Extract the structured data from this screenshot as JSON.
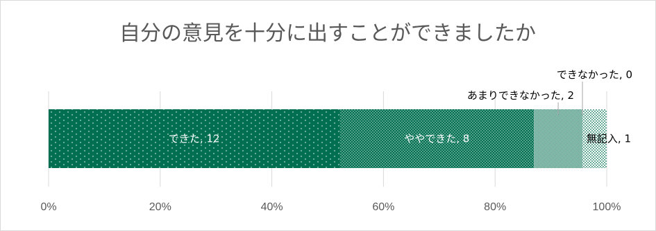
{
  "chart_data": {
    "type": "bar",
    "orientation": "horizontal",
    "stacked": "percent",
    "title": "自分の意見を十分に出すことができましたか",
    "xlabel": "",
    "ylabel": "",
    "xlim": [
      0,
      100
    ],
    "x_ticks": [
      "0%",
      "20%",
      "40%",
      "60%",
      "80%",
      "100%"
    ],
    "grid": true,
    "legend": "none",
    "series": [
      {
        "category": "できた",
        "value": 12,
        "label": "できた, 12",
        "color": "#006e51",
        "pattern": "sparse-dots",
        "label_position": "inside"
      },
      {
        "category": "ややできた",
        "value": 8,
        "label": "ややできた, 8",
        "color": "#006e51",
        "pattern": "dense-dots",
        "label_position": "inside"
      },
      {
        "category": "あまりできなかった",
        "value": 2,
        "label": "あまりできなかった, 2",
        "color": "#006e51",
        "pattern": "checker",
        "label_position": "callout"
      },
      {
        "category": "できなかった",
        "value": 0,
        "label": "できなかった, 0",
        "color": "#006e51",
        "pattern": "checker",
        "label_position": "callout"
      },
      {
        "category": "無記入",
        "value": 1,
        "label": "無記入, 1",
        "color": "#006e51",
        "pattern": "light-dots",
        "label_position": "right"
      }
    ]
  }
}
